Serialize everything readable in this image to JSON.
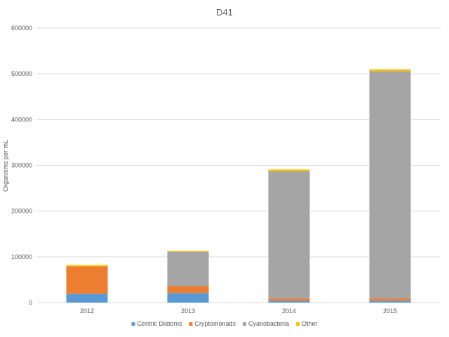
{
  "chart_data": {
    "type": "bar",
    "stacked": true,
    "title": "D41",
    "xlabel": "",
    "ylabel": "Organisms per mL",
    "categories": [
      "2012",
      "2013",
      "2014",
      "2015"
    ],
    "ylim": [
      0,
      600000
    ],
    "yticks": [
      0,
      100000,
      200000,
      300000,
      400000,
      500000,
      600000
    ],
    "ytick_labels": [
      "0",
      "100000",
      "200000",
      "300000",
      "400000",
      "500000",
      "600000"
    ],
    "grid": true,
    "legend_position": "bottom",
    "series": [
      {
        "name": "Centric Diatoms",
        "color": "#5b9bd5",
        "values": [
          19000,
          21000,
          4000,
          4000
        ]
      },
      {
        "name": "Cryptomonads",
        "color": "#ed7d31",
        "values": [
          60000,
          15000,
          5000,
          5000
        ]
      },
      {
        "name": "Cyanobacteria",
        "color": "#a5a5a5",
        "values": [
          0,
          75000,
          278000,
          497000
        ]
      },
      {
        "name": "Other",
        "color": "#ffc000",
        "values": [
          3000,
          2000,
          4000,
          4000
        ]
      }
    ]
  }
}
